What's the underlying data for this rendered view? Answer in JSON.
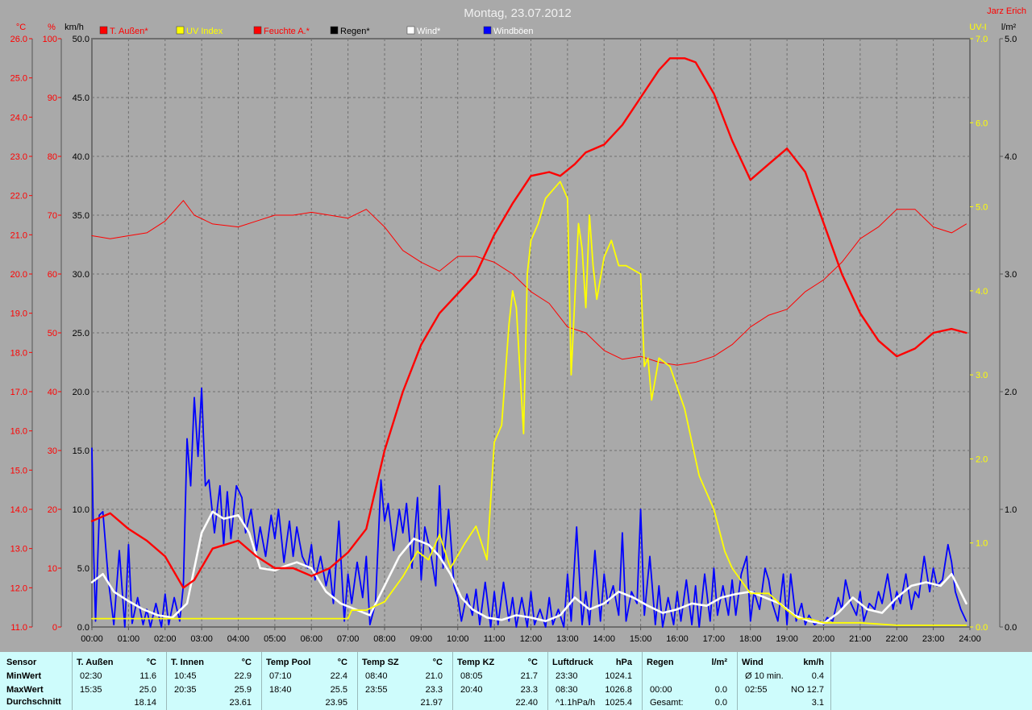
{
  "title": "Montag, 23.07.2012",
  "author": "Jarz Erich",
  "axes": {
    "left_units": [
      "°C",
      "%",
      "km/h"
    ],
    "right_units": [
      "UV-I",
      "l/m²"
    ],
    "temp_ticks": [
      "26.0",
      "25.0",
      "24.0",
      "23.0",
      "22.0",
      "21.0",
      "20.0",
      "19.0",
      "18.0",
      "17.0",
      "16.0",
      "15.0",
      "14.0",
      "13.0",
      "12.0",
      "11.0"
    ],
    "hum_ticks": [
      "100",
      "90",
      "80",
      "70",
      "60",
      "50",
      "40",
      "30",
      "20",
      "10",
      "0"
    ],
    "wind_ticks": [
      "50.0",
      "45.0",
      "40.0",
      "35.0",
      "30.0",
      "25.0",
      "20.0",
      "15.0",
      "10.0",
      "5.0",
      "0.0"
    ],
    "uv_ticks": [
      "7.0",
      "6.0",
      "5.0",
      "4.0",
      "3.0",
      "2.0",
      "1.0",
      "0.0"
    ],
    "rain_ticks": [
      "5.0",
      "4.0",
      "3.0",
      "2.0",
      "1.0",
      "0.0"
    ],
    "time_ticks": [
      "00:00",
      "01:00",
      "02:00",
      "03:00",
      "04:00",
      "05:00",
      "06:00",
      "07:00",
      "08:00",
      "09:00",
      "10:00",
      "11:00",
      "12:00",
      "13:00",
      "14:00",
      "15:00",
      "16:00",
      "17:00",
      "18:00",
      "19:00",
      "20:00",
      "21:00",
      "22:00",
      "23:00",
      "24:00"
    ]
  },
  "legend": [
    {
      "label": "T. Außen*",
      "color": "#ff0000",
      "text_color": "#ff0000"
    },
    {
      "label": "UV Index",
      "color": "#ffff00",
      "text_color": "#ffff00"
    },
    {
      "label": "Feuchte A.*",
      "color": "#ff0000",
      "text_color": "#ff0000"
    },
    {
      "label": "Regen*",
      "color": "#000000",
      "text_color": "#000000"
    },
    {
      "label": "Wind*",
      "color": "#ffffff",
      "text_color": "#ffffff"
    },
    {
      "label": "Windböen",
      "color": "#0000ff",
      "text_color": "#ffffff"
    }
  ],
  "colors": {
    "temp": "#ff0000",
    "humidity": "#ff0000",
    "uv": "#ffff00",
    "wind": "#ffffff",
    "gust": "#0000ff",
    "plot_bg": "#a9a9a9",
    "grid": "#7a7a7a",
    "stats_bg": "#cefcfc"
  },
  "chart_data": {
    "type": "line",
    "title": "Montag, 23.07.2012",
    "x_unit": "hours",
    "xlim": [
      0,
      24
    ],
    "grid": true,
    "legend_position": "top-left",
    "series": [
      {
        "name": "T. Außen*",
        "axis": "temp_c",
        "ylim": [
          11,
          26
        ],
        "x": [
          0,
          0.5,
          1,
          1.5,
          2,
          2.5,
          2.8,
          3.3,
          4,
          4.5,
          5,
          5.5,
          6,
          6.5,
          7,
          7.5,
          8,
          8.5,
          9,
          9.5,
          10,
          10.5,
          11,
          11.5,
          12,
          12.5,
          12.8,
          13.2,
          13.5,
          14,
          14.5,
          15,
          15.5,
          15.8,
          16.2,
          16.5,
          17,
          17.5,
          18,
          18.5,
          19,
          19.5,
          20,
          20.5,
          21,
          21.5,
          22,
          22.5,
          23,
          23.5,
          23.9
        ],
        "y": [
          13.7,
          13.9,
          13.5,
          13.2,
          12.8,
          12.0,
          12.2,
          13.0,
          13.2,
          12.8,
          12.5,
          12.5,
          12.3,
          12.5,
          12.9,
          13.5,
          15.5,
          17.0,
          18.2,
          19.0,
          19.5,
          20.0,
          21.0,
          21.8,
          22.5,
          22.6,
          22.5,
          22.8,
          23.1,
          23.3,
          23.8,
          24.5,
          25.2,
          25.5,
          25.5,
          25.4,
          24.6,
          23.4,
          22.4,
          22.8,
          23.2,
          22.6,
          21.3,
          20.0,
          19.0,
          18.3,
          17.9,
          18.1,
          18.5,
          18.6,
          18.5
        ]
      },
      {
        "name": "Feuchte A.*",
        "axis": "humidity_pct",
        "ylim": [
          0,
          100
        ],
        "x": [
          0,
          0.5,
          1,
          1.5,
          2,
          2.5,
          2.8,
          3.3,
          4,
          4.5,
          5,
          5.5,
          6,
          6.5,
          7,
          7.5,
          8,
          8.5,
          9,
          9.5,
          10,
          10.5,
          11,
          11.5,
          12,
          12.5,
          13,
          13.5,
          14,
          14.5,
          15,
          15.5,
          16,
          16.5,
          17,
          17.5,
          18,
          18.5,
          19,
          19.5,
          20,
          20.5,
          21,
          21.5,
          22,
          22.5,
          23,
          23.5,
          23.9
        ],
        "y": [
          66.5,
          66,
          66.5,
          67,
          69,
          72.5,
          70,
          68.5,
          68,
          69,
          70,
          70,
          70.5,
          70,
          69.5,
          71,
          68,
          64,
          62,
          60.5,
          63,
          63,
          62,
          60,
          57,
          55,
          51,
          50,
          47,
          45.5,
          46,
          45,
          44.5,
          45,
          46,
          48,
          51,
          53,
          54,
          57,
          59,
          62,
          66,
          68,
          71,
          71,
          68,
          67,
          68.5
        ]
      },
      {
        "name": "UV Index",
        "axis": "uv_index",
        "ylim": [
          0,
          7
        ],
        "x": [
          0,
          1,
          2,
          3,
          4,
          5,
          6,
          7,
          7.1,
          7.5,
          8,
          8.5,
          8.9,
          9.2,
          9.5,
          9.8,
          10.2,
          10.5,
          10.8,
          11,
          11.2,
          11.4,
          11.5,
          11.6,
          11.8,
          11.9,
          12,
          12.2,
          12.4,
          12.6,
          12.8,
          12.9,
          13.0,
          13.1,
          13.3,
          13.4,
          13.5,
          13.6,
          13.7,
          13.8,
          14.0,
          14.2,
          14.4,
          14.6,
          15.0,
          15.1,
          15.2,
          15.3,
          15.5,
          15.8,
          16.2,
          16.6,
          17.0,
          17.3,
          17.5,
          18.0,
          18.5,
          19.0,
          19.3,
          19.6,
          20.0,
          21,
          22,
          23,
          23.9
        ],
        "y": [
          0.1,
          0.1,
          0.1,
          0.1,
          0.1,
          0.1,
          0.1,
          0.1,
          0.2,
          0.2,
          0.3,
          0.6,
          0.9,
          0.8,
          1.1,
          0.7,
          1.0,
          1.2,
          0.8,
          2.2,
          2.4,
          3.6,
          4.0,
          3.8,
          2.3,
          4.2,
          4.6,
          4.8,
          5.1,
          5.2,
          5.3,
          5.2,
          5.1,
          3.0,
          4.8,
          4.5,
          3.8,
          4.9,
          4.3,
          3.9,
          4.4,
          4.6,
          4.3,
          4.3,
          4.2,
          3.1,
          3.2,
          2.7,
          3.2,
          3.1,
          2.6,
          1.8,
          1.4,
          0.9,
          0.7,
          0.4,
          0.4,
          0.2,
          0.1,
          0.1,
          0.05,
          0.05,
          0.02,
          0.02,
          0.02
        ]
      },
      {
        "name": "Wind*",
        "axis": "wind_kmh",
        "ylim": [
          0,
          50
        ],
        "x": [
          0,
          0.3,
          0.6,
          1.0,
          1.4,
          1.8,
          2.2,
          2.6,
          3.0,
          3.3,
          3.6,
          4.0,
          4.3,
          4.6,
          5.0,
          5.3,
          5.6,
          6.0,
          6.4,
          6.8,
          7.2,
          7.6,
          8.0,
          8.4,
          8.8,
          9.2,
          9.5,
          9.8,
          10.1,
          10.4,
          10.8,
          11.2,
          11.6,
          12.0,
          12.4,
          12.8,
          13.2,
          13.6,
          14.0,
          14.4,
          14.8,
          15.2,
          15.6,
          16.0,
          16.4,
          16.8,
          17.2,
          17.6,
          18.0,
          18.4,
          18.8,
          19.2,
          19.6,
          20.0,
          20.4,
          20.8,
          21.2,
          21.6,
          22.0,
          22.4,
          22.8,
          23.2,
          23.5,
          23.9
        ],
        "y": [
          3.8,
          4.5,
          3.0,
          2.2,
          1.5,
          1.0,
          0.8,
          2.0,
          8.0,
          9.8,
          9.2,
          9.5,
          8.0,
          5.0,
          4.8,
          5.2,
          5.5,
          5.0,
          3.0,
          2.0,
          1.5,
          1.0,
          3.5,
          6.0,
          7.5,
          7.0,
          6.0,
          4.5,
          2.5,
          1.5,
          0.8,
          0.6,
          1.0,
          0.8,
          0.5,
          1.0,
          2.5,
          1.5,
          2.0,
          3.0,
          2.5,
          1.8,
          1.2,
          1.5,
          2.0,
          1.8,
          2.5,
          2.8,
          3.0,
          2.5,
          2.0,
          1.0,
          0.5,
          0.3,
          1.2,
          2.5,
          1.5,
          1.2,
          2.5,
          3.5,
          3.8,
          3.5,
          4.5,
          2.0
        ]
      },
      {
        "name": "Windböen",
        "axis": "wind_kmh",
        "ylim": [
          0,
          50
        ],
        "x": [
          0,
          0.05,
          0.1,
          0.2,
          0.3,
          0.45,
          0.6,
          0.75,
          0.9,
          1.0,
          1.1,
          1.25,
          1.4,
          1.5,
          1.6,
          1.75,
          1.9,
          2.0,
          2.1,
          2.25,
          2.4,
          2.5,
          2.6,
          2.7,
          2.8,
          2.9,
          3.0,
          3.1,
          3.2,
          3.35,
          3.5,
          3.6,
          3.7,
          3.8,
          3.95,
          4.1,
          4.2,
          4.35,
          4.5,
          4.6,
          4.75,
          4.9,
          5.0,
          5.1,
          5.25,
          5.4,
          5.5,
          5.6,
          5.75,
          5.9,
          6.0,
          6.1,
          6.25,
          6.4,
          6.5,
          6.6,
          6.75,
          6.9,
          7.0,
          7.1,
          7.25,
          7.4,
          7.5,
          7.6,
          7.75,
          7.9,
          8.0,
          8.1,
          8.25,
          8.4,
          8.5,
          8.6,
          8.75,
          8.9,
          9.0,
          9.1,
          9.25,
          9.4,
          9.5,
          9.6,
          9.75,
          9.9,
          10.0,
          10.1,
          10.25,
          10.4,
          10.5,
          10.6,
          10.75,
          10.9,
          11.0,
          11.1,
          11.25,
          11.4,
          11.5,
          11.6,
          11.75,
          11.9,
          12.0,
          12.1,
          12.25,
          12.4,
          12.5,
          12.6,
          12.75,
          12.9,
          13.0,
          13.1,
          13.25,
          13.4,
          13.5,
          13.6,
          13.75,
          13.9,
          14.0,
          14.1,
          14.25,
          14.4,
          14.5,
          14.6,
          14.75,
          14.9,
          15.0,
          15.1,
          15.25,
          15.4,
          15.5,
          15.6,
          15.75,
          15.9,
          16.0,
          16.1,
          16.25,
          16.4,
          16.5,
          16.6,
          16.75,
          16.9,
          17.0,
          17.1,
          17.25,
          17.4,
          17.5,
          17.6,
          17.75,
          17.9,
          18.0,
          18.1,
          18.25,
          18.4,
          18.5,
          18.6,
          18.75,
          18.9,
          19.0,
          19.1,
          19.25,
          19.4,
          19.5,
          19.6,
          19.75,
          19.9,
          20.0,
          20.1,
          20.25,
          20.4,
          20.5,
          20.6,
          20.75,
          20.9,
          21.0,
          21.1,
          21.25,
          21.4,
          21.5,
          21.6,
          21.75,
          21.9,
          22.0,
          22.1,
          22.25,
          22.4,
          22.5,
          22.6,
          22.75,
          22.9,
          23.0,
          23.1,
          23.25,
          23.4,
          23.5,
          23.6,
          23.75,
          23.9
        ],
        "y": [
          15.2,
          6.0,
          0.5,
          9.5,
          9.8,
          4.0,
          0.2,
          6.5,
          0.0,
          7.0,
          0.3,
          2.5,
          0.2,
          1.5,
          0.0,
          2.0,
          0.0,
          2.8,
          0.2,
          2.5,
          0.5,
          3.5,
          16.0,
          12.0,
          19.5,
          14.5,
          20.3,
          12.0,
          12.5,
          8.0,
          12.0,
          7.0,
          11.5,
          7.5,
          12.0,
          11.0,
          8.0,
          10.0,
          6.5,
          8.5,
          6.0,
          9.5,
          7.5,
          10.0,
          5.5,
          9.0,
          6.0,
          8.5,
          6.0,
          5.0,
          7.0,
          4.0,
          6.0,
          3.5,
          5.0,
          2.0,
          9.0,
          0.5,
          4.5,
          2.0,
          5.5,
          2.5,
          6.0,
          0.2,
          2.0,
          12.5,
          9.0,
          10.5,
          6.5,
          10.0,
          8.0,
          10.5,
          5.0,
          11.0,
          4.0,
          8.5,
          6.5,
          3.5,
          12.0,
          5.0,
          10.0,
          3.5,
          2.5,
          0.5,
          2.8,
          1.0,
          3.2,
          0.2,
          3.8,
          0.0,
          3.0,
          0.2,
          3.8,
          0.5,
          2.5,
          0.0,
          2.5,
          0.0,
          3.0,
          0.2,
          1.5,
          0.0,
          2.5,
          0.2,
          1.5,
          0.0,
          4.5,
          0.5,
          8.5,
          0.2,
          3.0,
          0.2,
          6.5,
          0.5,
          4.5,
          2.0,
          3.5,
          1.0,
          8.0,
          0.5,
          3.0,
          2.0,
          10.0,
          1.0,
          6.0,
          0.2,
          3.5,
          0.0,
          2.5,
          0.2,
          3.0,
          0.5,
          4.0,
          0.2,
          3.5,
          0.0,
          4.5,
          0.5,
          5.0,
          1.0,
          3.5,
          1.0,
          4.0,
          1.0,
          4.5,
          6.0,
          0.5,
          3.0,
          1.5,
          5.0,
          4.0,
          2.0,
          0.5,
          4.5,
          0.2,
          4.5,
          0.5,
          2.0,
          0.2,
          1.0,
          0.2,
          0.5,
          0.2,
          0.8,
          0.5,
          2.5,
          1.5,
          4.0,
          2.0,
          1.0,
          3.0,
          0.5,
          2.0,
          1.5,
          3.0,
          2.0,
          4.5,
          1.5,
          3.0,
          2.0,
          4.5,
          1.5,
          3.0,
          2.5,
          6.0,
          3.0,
          5.0,
          3.5,
          4.0,
          7.0,
          5.5,
          3.0,
          1.5,
          0.5
        ]
      }
    ]
  },
  "stats": {
    "row_labels": {
      "header": "Sensor",
      "min": "MinWert",
      "max": "MaxWert",
      "avg": "Durchschnitt"
    },
    "groups": [
      {
        "name": "T. Außen",
        "unit": "°C",
        "min_time": "02:30",
        "min_val": "11.6",
        "max_time": "15:35",
        "max_val": "25.0",
        "avg_time": "",
        "avg_val": "18.14"
      },
      {
        "name": "T. Innen",
        "unit": "°C",
        "min_time": "10:45",
        "min_val": "22.9",
        "max_time": "20:35",
        "max_val": "25.9",
        "avg_time": "",
        "avg_val": "23.61"
      },
      {
        "name": "Temp Pool",
        "unit": "°C",
        "min_time": "07:10",
        "min_val": "22.4",
        "max_time": "18:40",
        "max_val": "25.5",
        "avg_time": "",
        "avg_val": "23.95"
      },
      {
        "name": "Temp SZ",
        "unit": "°C",
        "min_time": "08:40",
        "min_val": "21.0",
        "max_time": "23:55",
        "max_val": "23.3",
        "avg_time": "",
        "avg_val": "21.97"
      },
      {
        "name": "Temp KZ",
        "unit": "°C",
        "min_time": "08:05",
        "min_val": "21.7",
        "max_time": "20:40",
        "max_val": "23.3",
        "avg_time": "",
        "avg_val": "22.40"
      },
      {
        "name": "Luftdruck",
        "unit": "hPa",
        "min_time": "23:30",
        "min_val": "1024.1",
        "max_time": "08:30",
        "max_val": "1026.8",
        "avg_time": "^1.1hPa/h",
        "avg_val": "1025.4"
      },
      {
        "name": "Regen",
        "unit": "l/m²",
        "min_time": "",
        "min_val": "",
        "max_time": "00:00",
        "max_val": "0.0",
        "avg_time": "Gesamt:",
        "avg_val": "0.0"
      },
      {
        "name": "Wind",
        "unit": "km/h",
        "min_time": "Ø 10 min.",
        "min_val": "0.4",
        "max_time": "02:55",
        "max_val": "NO 12.7",
        "avg_time": "",
        "avg_val": "3.1"
      }
    ]
  }
}
